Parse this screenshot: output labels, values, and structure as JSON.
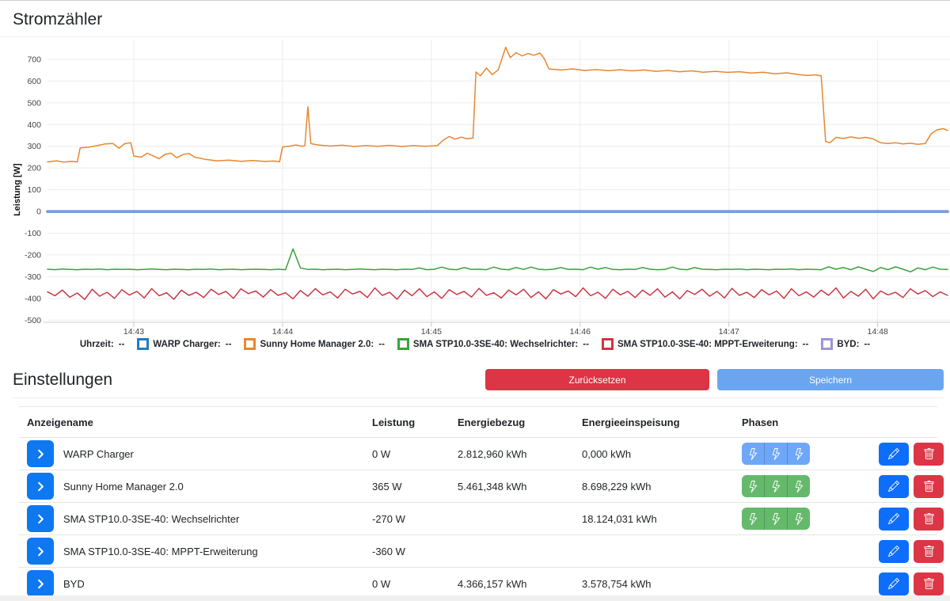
{
  "page": {
    "title": "Stromzähler",
    "settings_title": "Einstellungen"
  },
  "buttons": {
    "reset": "Zurücksetzen",
    "save": "Speichern"
  },
  "chart_data": {
    "type": "line",
    "ylabel": "Leistung [W]",
    "xlim": [
      0.42,
      6.47
    ],
    "ylim": [
      -510,
      791
    ],
    "grid": true,
    "legend_position": "bottom",
    "x_ticks": [
      {
        "t": 1,
        "label": "14:43"
      },
      {
        "t": 2,
        "label": "14:44"
      },
      {
        "t": 3,
        "label": "14:45"
      },
      {
        "t": 4,
        "label": "14:46"
      },
      {
        "t": 5,
        "label": "14:47"
      },
      {
        "t": 6,
        "label": "14:48"
      }
    ],
    "y_ticks": [
      700,
      600,
      500,
      400,
      300,
      200,
      100,
      0,
      -100,
      -200,
      -300,
      -400,
      -500
    ],
    "legend": {
      "time_label": "Uhrzeit:",
      "value_placeholder": "--"
    },
    "series": [
      {
        "name": "WARP Charger",
        "color": "#2779bd",
        "width": 3.2,
        "points": [
          [
            0.42,
            0
          ],
          [
            6.47,
            0
          ]
        ]
      },
      {
        "name": "Sunny Home Manager 2.0",
        "color": "#e8872e",
        "width": 1.5,
        "points": [
          [
            0.42,
            228
          ],
          [
            0.48,
            233
          ],
          [
            0.53,
            227
          ],
          [
            0.58,
            231
          ],
          [
            0.62,
            228
          ],
          [
            0.64,
            293
          ],
          [
            0.7,
            296
          ],
          [
            0.76,
            304
          ],
          [
            0.81,
            311
          ],
          [
            0.86,
            313
          ],
          [
            0.9,
            291
          ],
          [
            0.94,
            312
          ],
          [
            0.98,
            316
          ],
          [
            1.0,
            255
          ],
          [
            1.05,
            250
          ],
          [
            1.09,
            268
          ],
          [
            1.13,
            256
          ],
          [
            1.17,
            243
          ],
          [
            1.21,
            263
          ],
          [
            1.25,
            268
          ],
          [
            1.29,
            247
          ],
          [
            1.33,
            262
          ],
          [
            1.37,
            267
          ],
          [
            1.41,
            250
          ],
          [
            1.48,
            240
          ],
          [
            1.56,
            233
          ],
          [
            1.64,
            236
          ],
          [
            1.72,
            231
          ],
          [
            1.8,
            234
          ],
          [
            1.88,
            230
          ],
          [
            1.94,
            232
          ],
          [
            1.98,
            229
          ],
          [
            2.0,
            297
          ],
          [
            2.05,
            301
          ],
          [
            2.09,
            306
          ],
          [
            2.13,
            300
          ],
          [
            2.15,
            303
          ],
          [
            2.17,
            482
          ],
          [
            2.19,
            312
          ],
          [
            2.24,
            306
          ],
          [
            2.32,
            301
          ],
          [
            2.4,
            305
          ],
          [
            2.48,
            299
          ],
          [
            2.56,
            303
          ],
          [
            2.64,
            300
          ],
          [
            2.72,
            304
          ],
          [
            2.8,
            299
          ],
          [
            2.88,
            303
          ],
          [
            2.96,
            300
          ],
          [
            3.04,
            303
          ],
          [
            3.08,
            328
          ],
          [
            3.12,
            345
          ],
          [
            3.16,
            333
          ],
          [
            3.2,
            342
          ],
          [
            3.24,
            334
          ],
          [
            3.28,
            338
          ],
          [
            3.3,
            642
          ],
          [
            3.33,
            624
          ],
          [
            3.37,
            660
          ],
          [
            3.41,
            630
          ],
          [
            3.45,
            652
          ],
          [
            3.5,
            756
          ],
          [
            3.53,
            708
          ],
          [
            3.57,
            731
          ],
          [
            3.61,
            716
          ],
          [
            3.65,
            727
          ],
          [
            3.69,
            719
          ],
          [
            3.73,
            729
          ],
          [
            3.76,
            702
          ],
          [
            3.79,
            656
          ],
          [
            3.87,
            651
          ],
          [
            3.95,
            656
          ],
          [
            4.03,
            649
          ],
          [
            4.11,
            653
          ],
          [
            4.19,
            648
          ],
          [
            4.27,
            652
          ],
          [
            4.35,
            647
          ],
          [
            4.43,
            651
          ],
          [
            4.51,
            645
          ],
          [
            4.59,
            649
          ],
          [
            4.67,
            643
          ],
          [
            4.75,
            647
          ],
          [
            4.83,
            641
          ],
          [
            4.91,
            645
          ],
          [
            4.99,
            640
          ],
          [
            5.07,
            643
          ],
          [
            5.15,
            637
          ],
          [
            5.23,
            641
          ],
          [
            5.31,
            634
          ],
          [
            5.39,
            638
          ],
          [
            5.47,
            630
          ],
          [
            5.53,
            626
          ],
          [
            5.58,
            629
          ],
          [
            5.62,
            624
          ],
          [
            5.65,
            322
          ],
          [
            5.68,
            316
          ],
          [
            5.72,
            341
          ],
          [
            5.77,
            336
          ],
          [
            5.82,
            343
          ],
          [
            5.87,
            337
          ],
          [
            5.92,
            341
          ],
          [
            5.97,
            334
          ],
          [
            6.02,
            316
          ],
          [
            6.07,
            313
          ],
          [
            6.12,
            316
          ],
          [
            6.17,
            311
          ],
          [
            6.22,
            314
          ],
          [
            6.27,
            309
          ],
          [
            6.32,
            313
          ],
          [
            6.36,
            358
          ],
          [
            6.4,
            376
          ],
          [
            6.44,
            381
          ],
          [
            6.47,
            373
          ]
        ]
      },
      {
        "name": "SMA STP10.0-3SE-40: Wechselrichter",
        "color": "#3aa23a",
        "width": 1.5,
        "t0": 0.42,
        "dt": 0.05,
        "values": [
          -266,
          -268,
          -265,
          -267,
          -268,
          -266,
          -267,
          -265,
          -268,
          -266,
          -267,
          -266,
          -268,
          -267,
          -265,
          -267,
          -268,
          -266,
          -267,
          -268,
          -266,
          -267,
          -265,
          -268,
          -267,
          -266,
          -268,
          -267,
          -266,
          -267,
          -268,
          -266,
          -268,
          -172,
          -260,
          -267,
          -266,
          -268,
          -267,
          -266,
          -268,
          -267,
          -265,
          -267,
          -268,
          -266,
          -267,
          -268,
          -266,
          -267,
          -260,
          -268,
          -266,
          -256,
          -266,
          -268,
          -258,
          -267,
          -266,
          -268,
          -256,
          -266,
          -268,
          -258,
          -267,
          -256,
          -266,
          -268,
          -266,
          -258,
          -267,
          -266,
          -268,
          -256,
          -266,
          -258,
          -267,
          -268,
          -266,
          -267,
          -258,
          -266,
          -268,
          -267,
          -256,
          -266,
          -268,
          -258,
          -266,
          -267,
          -268,
          -266,
          -267,
          -265,
          -268,
          -266,
          -267,
          -268,
          -266,
          -267,
          -265,
          -268,
          -266,
          -267,
          -268,
          -255,
          -266,
          -258,
          -268,
          -255,
          -266,
          -276,
          -258,
          -268,
          -255,
          -266,
          -278,
          -260,
          -268,
          -256,
          -266,
          -267
        ]
      },
      {
        "name": "SMA STP10.0-3SE-40: MPPT-Erweiterung",
        "color": "#cb3645",
        "width": 1.5,
        "t0": 0.42,
        "dt": 0.05,
        "values": [
          -370,
          -388,
          -362,
          -395,
          -375,
          -405,
          -358,
          -390,
          -372,
          -400,
          -360,
          -385,
          -368,
          -398,
          -355,
          -388,
          -374,
          -404,
          -362,
          -386,
          -372,
          -396,
          -358,
          -382,
          -368,
          -400,
          -356,
          -378,
          -366,
          -394,
          -360,
          -386,
          -374,
          -402,
          -364,
          -390,
          -355,
          -384,
          -370,
          -398,
          -358,
          -380,
          -368,
          -396,
          -352,
          -386,
          -372,
          -404,
          -362,
          -388,
          -356,
          -392,
          -370,
          -400,
          -360,
          -382,
          -368,
          -394,
          -354,
          -386,
          -374,
          -398,
          -362,
          -384,
          -358,
          -396,
          -370,
          -402,
          -360,
          -380,
          -366,
          -392,
          -352,
          -388,
          -372,
          -400,
          -358,
          -384,
          -368,
          -396,
          -362,
          -386,
          -356,
          -394,
          -370,
          -402,
          -364,
          -382,
          -358,
          -390,
          -368,
          -398,
          -354,
          -386,
          -372,
          -396,
          -360,
          -384,
          -366,
          -400,
          -356,
          -388,
          -370,
          -394,
          -362,
          -386,
          -352,
          -398,
          -368,
          -390,
          -358,
          -402,
          -366,
          -384,
          -372,
          -396,
          -356,
          -380,
          -364,
          -392,
          -370,
          -386
        ]
      },
      {
        "name": "BYD",
        "color": "#9c95d8",
        "width": 2,
        "points": [
          [
            0.42,
            0
          ],
          [
            6.47,
            0
          ]
        ]
      }
    ]
  },
  "table": {
    "headers": [
      "Anzeigename",
      "Leistung",
      "Energiebezug",
      "Energieeinspeisung",
      "Phasen"
    ],
    "rows": [
      {
        "name": "WARP Charger",
        "power": "0 W",
        "energy_import": "2.812,960 kWh",
        "energy_export": "0,000 kWh",
        "phases": "blue"
      },
      {
        "name": "Sunny Home Manager 2.0",
        "power": "365 W",
        "energy_import": "5.461,348 kWh",
        "energy_export": "8.698,229 kWh",
        "phases": "green"
      },
      {
        "name": "SMA STP10.0-3SE-40: Wechselrichter",
        "power": "-270 W",
        "energy_import": "",
        "energy_export": "18.124,031 kWh",
        "phases": "green"
      },
      {
        "name": "SMA STP10.0-3SE-40: MPPT-Erweiterung",
        "power": "-360 W",
        "energy_import": "",
        "energy_export": "",
        "phases": null
      },
      {
        "name": "BYD",
        "power": "0 W",
        "energy_import": "4.366,157 kWh",
        "energy_export": "3.578,754 kWh",
        "phases": null
      }
    ]
  },
  "colors": {
    "accent_blue": "#0d78f0",
    "edit_blue": "#0d6efd",
    "danger_red": "#dc3545",
    "save_blue": "#6ba5ef",
    "phase_blue": "#6ea7f8",
    "phase_green": "#65b96b"
  }
}
